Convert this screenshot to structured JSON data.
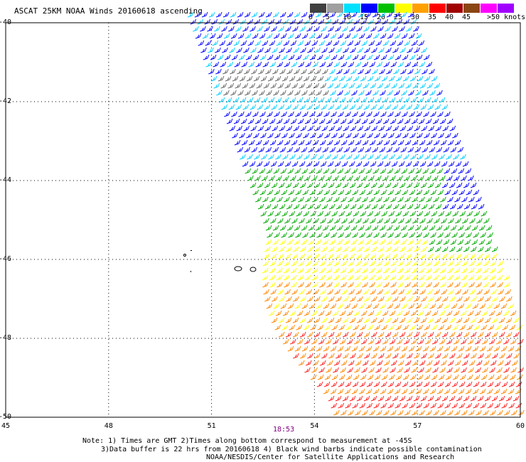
{
  "title": "ASCAT 25KM NOAA Winds 20160618 ascending",
  "legend": {
    "items": [
      {
        "label": "0",
        "color": "#404040"
      },
      {
        "label": "5",
        "color": "#a0a0a0"
      },
      {
        "label": "10",
        "color": "#00e0ff"
      },
      {
        "label": "15",
        "color": "#0000ff"
      },
      {
        "label": "20",
        "color": "#00c000"
      },
      {
        "label": "25",
        "color": "#ffff00"
      },
      {
        "label": "30",
        "color": "#ffa000"
      },
      {
        "label": "35",
        "color": "#ff0000"
      },
      {
        "label": "40",
        "color": "#a00000"
      },
      {
        "label": "45",
        "color": "#8b4513"
      },
      {
        "label": "",
        "color": "#ff00ff"
      },
      {
        "label": "",
        "color": "#a000ff"
      }
    ],
    "end_label": ">50 knots"
  },
  "map": {
    "lon_min": 45,
    "lon_max": 60,
    "lat_top": -40,
    "lat_bottom": -50,
    "lat_labels": [
      "-40",
      "-42",
      "-44",
      "-46",
      "-48",
      "-50"
    ],
    "lon_labels": [
      "45",
      "48",
      "51",
      "54",
      "57",
      "60"
    ],
    "grid": "dotted",
    "colors": {
      "wind_blue": "#0000ff",
      "wind_cyan": "#00ccff",
      "wind_green": "#00aa00",
      "wind_yellow": "#ffff00",
      "wind_orange": "#ff8800",
      "wind_red": "#ff2020",
      "land": "#000000"
    }
  },
  "time_label": "18:53",
  "notes": {
    "line1": "Note: 1) Times are GMT 2)Times along bottom correspond to measurement at -45S",
    "line2": "3)Data buffer is 22 hrs from 20160618 4) Black wind barbs indicate possible contamination",
    "line3": "NOAA/NESDIS/Center for Satellite Applications and Research"
  }
}
